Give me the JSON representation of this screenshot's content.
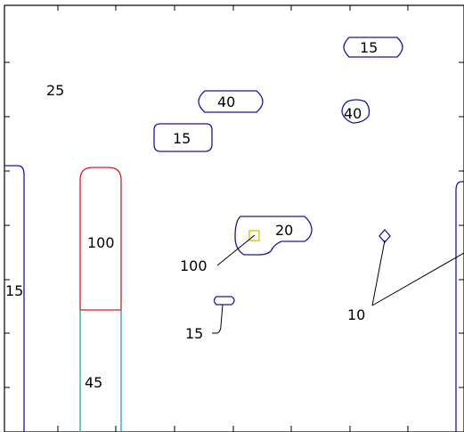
{
  "chart_data": {
    "type": "contour",
    "contour_labels": [
      {
        "text": "15",
        "color": "#1a1a8c"
      },
      {
        "text": "40",
        "color": "#1a1a8c"
      },
      {
        "text": "40",
        "color": "#1a1a8c"
      },
      {
        "text": "15",
        "color": "#1a1a8c"
      },
      {
        "text": "20",
        "color": "#1a1a8c"
      },
      {
        "text": "100",
        "color": "#cc1f1f"
      },
      {
        "text": "45",
        "color": "#22a6a6"
      }
    ],
    "annotations": [
      {
        "text": "25"
      },
      {
        "text": "100"
      },
      {
        "text": "15"
      },
      {
        "text": "10"
      },
      {
        "text": "15"
      }
    ],
    "colors": {
      "level_blue": "#1a1a8c",
      "level_red": "#cc1f1f",
      "level_cyan": "#22a6a6",
      "marker": "#c8c800"
    },
    "grid": false,
    "axis_tick_labels_visible": false
  }
}
